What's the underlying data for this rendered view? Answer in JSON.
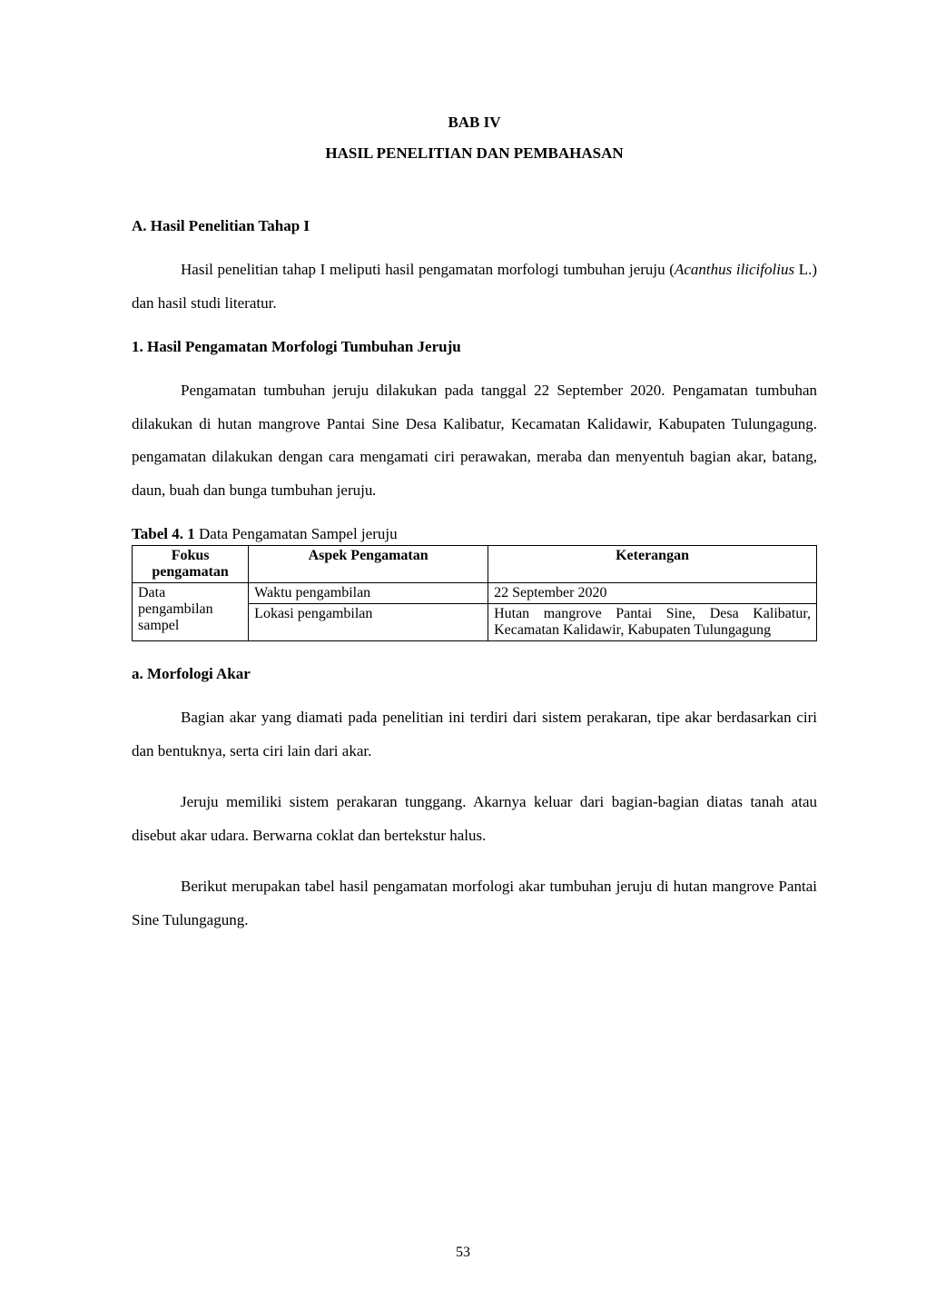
{
  "chapter": {
    "number": "BAB IV",
    "title": "HASIL PENELITIAN DAN PEMBAHASAN"
  },
  "sectionA": {
    "heading": "A.   Hasil Penelitian Tahap I",
    "para1_pre": "Hasil penelitian tahap I meliputi hasil pengamatan morfologi tumbuhan jeruju (",
    "para1_italic": "Acanthus ilicifolius",
    "para1_post": " L.) dan hasil studi literatur."
  },
  "section1": {
    "heading": "1.    Hasil Pengamatan Morfologi Tumbuhan Jeruju",
    "para1": "Pengamatan tumbuhan jeruju dilakukan pada tanggal 22 September 2020. Pengamatan tumbuhan dilakukan di hutan mangrove Pantai Sine Desa Kalibatur, Kecamatan Kalidawir, Kabupaten Tulungagung. pengamatan dilakukan dengan cara mengamati ciri perawakan, meraba dan menyentuh bagian akar, batang, daun, buah dan bunga tumbuhan jeruju",
    "para1_italic": "."
  },
  "table": {
    "caption_bold": "Tabel 4. 1",
    "caption_rest": " Data Pengamatan Sampel jeruju",
    "columns": [
      "Fokus pengamatan",
      "Aspek Pengamatan",
      "Keterangan"
    ],
    "col_widths": [
      "17%",
      "35%",
      "48%"
    ],
    "row1": {
      "fokus": "Data pengambilan sampel",
      "aspek": "Waktu pengambilan",
      "ket": "22 September 2020"
    },
    "row2": {
      "aspek": "Lokasi pengambilan",
      "ket": "Hutan mangrove Pantai Sine, Desa Kalibatur, Kecamatan Kalidawir, Kabupaten Tulungagung"
    }
  },
  "sectionA_sub": {
    "heading": "a.    Morfologi Akar",
    "para1": "Bagian akar yang diamati pada penelitian ini terdiri dari sistem perakaran, tipe akar berdasarkan ciri dan bentuknya, serta ciri lain dari akar.",
    "para2": "Jeruju memiliki sistem perakaran tunggang. Akarnya keluar dari bagian-bagian diatas tanah atau disebut akar udara. Berwarna coklat dan bertekstur halus.",
    "para3": "Berikut merupakan tabel hasil pengamatan morfologi akar tumbuhan jeruju di hutan mangrove Pantai Sine Tulungagung."
  },
  "page_number": "53",
  "styles": {
    "body_font_size_pt": 12,
    "line_height": 2.15,
    "text_color": "#000000",
    "background_color": "#ffffff",
    "border_color": "#000000"
  }
}
